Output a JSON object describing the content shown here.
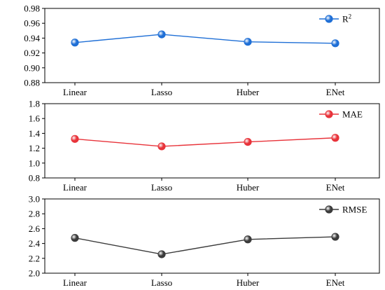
{
  "chart_data": [
    {
      "type": "line",
      "categories": [
        "Linear",
        "Lasso",
        "Huber",
        "ENet"
      ],
      "series": [
        {
          "name": "R",
          "superscript": "2",
          "values": [
            0.934,
            0.945,
            0.935,
            0.933
          ],
          "color": "#1f6fd6"
        }
      ],
      "ylim": [
        0.88,
        0.98
      ],
      "yticks": [
        "0.88",
        "0.90",
        "0.92",
        "0.94",
        "0.96",
        "0.98"
      ],
      "legend_position": "top-right",
      "grid": false
    },
    {
      "type": "line",
      "categories": [
        "Linear",
        "Lasso",
        "Huber",
        "ENet"
      ],
      "series": [
        {
          "name": "MAE",
          "values": [
            1.325,
            1.225,
            1.285,
            1.34
          ],
          "color": "#e8333a"
        }
      ],
      "ylim": [
        0.8,
        1.8
      ],
      "yticks": [
        "0.8",
        "1.0",
        "1.2",
        "1.4",
        "1.6",
        "1.8"
      ],
      "legend_position": "top-right",
      "grid": false
    },
    {
      "type": "line",
      "categories": [
        "Linear",
        "Lasso",
        "Huber",
        "ENet"
      ],
      "series": [
        {
          "name": "RMSE",
          "values": [
            2.475,
            2.255,
            2.455,
            2.49
          ],
          "color": "#3b3b3b"
        }
      ],
      "ylim": [
        2.0,
        3.0
      ],
      "yticks": [
        "2.0",
        "2.2",
        "2.4",
        "2.6",
        "2.8",
        "3.0"
      ],
      "legend_position": "top-right",
      "grid": false
    }
  ]
}
